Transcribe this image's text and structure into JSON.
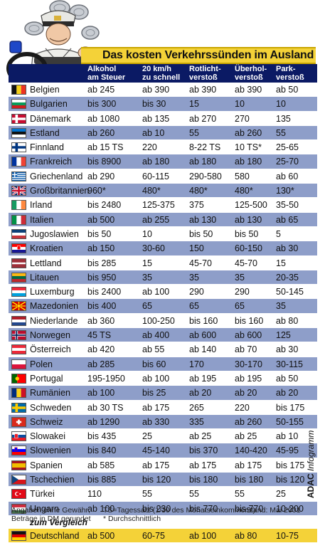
{
  "title": "Das kosten Verkehrssünden im Ausland",
  "headers": [
    [
      "Alkohol",
      "am Steuer"
    ],
    [
      "20 km/h",
      "zu schnell"
    ],
    [
      "Rotlicht-",
      "verstoß"
    ],
    [
      "Überhol-",
      "verstoß"
    ],
    [
      "Park-",
      "verstoß"
    ]
  ],
  "rows": [
    {
      "country": "Belgien",
      "flag": "be",
      "v": [
        "ab 245",
        "ab 390",
        "ab 390",
        "ab 390",
        "ab 50"
      ]
    },
    {
      "country": "Bulgarien",
      "flag": "bg",
      "v": [
        "bis 300",
        "bis 30",
        "15",
        "10",
        "10"
      ]
    },
    {
      "country": "Dänemark",
      "flag": "dk",
      "v": [
        "ab 1080",
        "ab 135",
        "ab 270",
        "270",
        "135"
      ]
    },
    {
      "country": "Estland",
      "flag": "ee",
      "v": [
        "ab 260",
        "ab 10",
        "55",
        "ab 260",
        "55"
      ]
    },
    {
      "country": "Finnland",
      "flag": "fi",
      "v": [
        "ab 15 TS",
        "220",
        "8-22 TS",
        "10 TS*",
        "25-65"
      ]
    },
    {
      "country": "Frankreich",
      "flag": "fr",
      "v": [
        "bis 8900",
        "ab 180",
        "ab 180",
        "ab 180",
        "25-70"
      ]
    },
    {
      "country": "Griechenland",
      "flag": "gr",
      "v": [
        "ab 290",
        "60-115",
        "290-580",
        "580",
        "ab 60"
      ]
    },
    {
      "country": "Großbritannien",
      "flag": "gb",
      "v": [
        "960*",
        "480*",
        "480*",
        "480*",
        "130*"
      ]
    },
    {
      "country": "Irland",
      "flag": "ie",
      "v": [
        "bis 2480",
        "125-375",
        "375",
        "125-500",
        "35-50"
      ]
    },
    {
      "country": "Italien",
      "flag": "it",
      "v": [
        "ab 500",
        "ab 255",
        "ab 130",
        "ab 130",
        "ab 65"
      ]
    },
    {
      "country": "Jugoslawien",
      "flag": "yu",
      "v": [
        "bis 50",
        "10",
        "bis 50",
        "bis 50",
        "5"
      ]
    },
    {
      "country": "Kroatien",
      "flag": "hr",
      "v": [
        "ab 150",
        "30-60",
        "150",
        "60-150",
        "ab 30"
      ]
    },
    {
      "country": "Lettland",
      "flag": "lv",
      "v": [
        "bis 285",
        "15",
        "45-70",
        "45-70",
        "15"
      ]
    },
    {
      "country": "Litauen",
      "flag": "lt",
      "v": [
        "bis 950",
        "35",
        "35",
        "35",
        "20-35"
      ]
    },
    {
      "country": "Luxemburg",
      "flag": "lu",
      "v": [
        "bis 2400",
        "ab 100",
        "290",
        "290",
        "50-145"
      ]
    },
    {
      "country": "Mazedonien",
      "flag": "mk",
      "v": [
        "bis 400",
        "65",
        "65",
        "65",
        "35"
      ]
    },
    {
      "country": "Niederlande",
      "flag": "nl",
      "v": [
        "ab 360",
        "100-250",
        "bis 160",
        "bis 160",
        "ab 80"
      ]
    },
    {
      "country": "Norwegen",
      "flag": "no",
      "v": [
        "45 TS",
        "ab 400",
        "ab 600",
        "ab 600",
        "125"
      ]
    },
    {
      "country": "Österreich",
      "flag": "at",
      "v": [
        "ab 420",
        "ab 55",
        "ab 140",
        "ab 70",
        "ab 30"
      ]
    },
    {
      "country": "Polen",
      "flag": "pl",
      "v": [
        "ab 285",
        "bis 60",
        "170",
        "30-170",
        "30-115"
      ]
    },
    {
      "country": "Portugal",
      "flag": "pt",
      "v": [
        "195-1950",
        "ab 100",
        "ab 195",
        "ab 195",
        "ab 50"
      ]
    },
    {
      "country": "Rumänien",
      "flag": "ro",
      "v": [
        "ab 100",
        "bis 25",
        "ab 20",
        "ab 20",
        "ab 20"
      ]
    },
    {
      "country": "Schweden",
      "flag": "se",
      "v": [
        "ab 30 TS",
        "ab 175",
        "265",
        "220",
        "bis 175"
      ]
    },
    {
      "country": "Schweiz",
      "flag": "ch",
      "v": [
        "ab 1290",
        "ab 330",
        "335",
        "ab 260",
        "50-155"
      ]
    },
    {
      "country": "Slowakei",
      "flag": "sk",
      "v": [
        "bis 435",
        "25",
        "ab 25",
        "ab 25",
        "ab 10"
      ]
    },
    {
      "country": "Slowenien",
      "flag": "si",
      "v": [
        "bis 840",
        "45-140",
        "bis 370",
        "140-420",
        "45-95"
      ]
    },
    {
      "country": "Spanien",
      "flag": "es",
      "v": [
        "ab 585",
        "ab 175",
        "ab 175",
        "ab 175",
        "bis 175"
      ]
    },
    {
      "country": "Tschechien",
      "flag": "cz",
      "v": [
        "bis 885",
        "bis 120",
        "bis 180",
        "bis 180",
        "bis 120"
      ]
    },
    {
      "country": "Türkei",
      "flag": "tr",
      "v": [
        "110",
        "55",
        "55",
        "55",
        "25"
      ]
    },
    {
      "country": "Ungarn",
      "flag": "hu",
      "v": [
        "ab 100",
        "bis 230",
        "bis 770",
        "bis 770",
        "10-200"
      ]
    }
  ],
  "comparison_label": "zum Vergleich",
  "comparison_row": {
    "country": "Deutschland",
    "flag": "de",
    "v": [
      "ab 500",
      "60-75",
      "ab 100",
      "ab 80",
      "10-75"
    ]
  },
  "footer": {
    "note1": "Angaben ohne Gewähr;",
    "note2": "Beträge in DM gerundet",
    "ts": "TS=Tagessatz (1/30 des Monatseinkommens)",
    "avg": "* Durchschnittlich",
    "date": "Stand: Mai 2001"
  },
  "brand": {
    "bold": "ADAC",
    "italic": "Infogramm"
  },
  "colors": {
    "header": "#0b1a64",
    "row_alt": "#8e9ec9",
    "accent": "#f4d238"
  }
}
